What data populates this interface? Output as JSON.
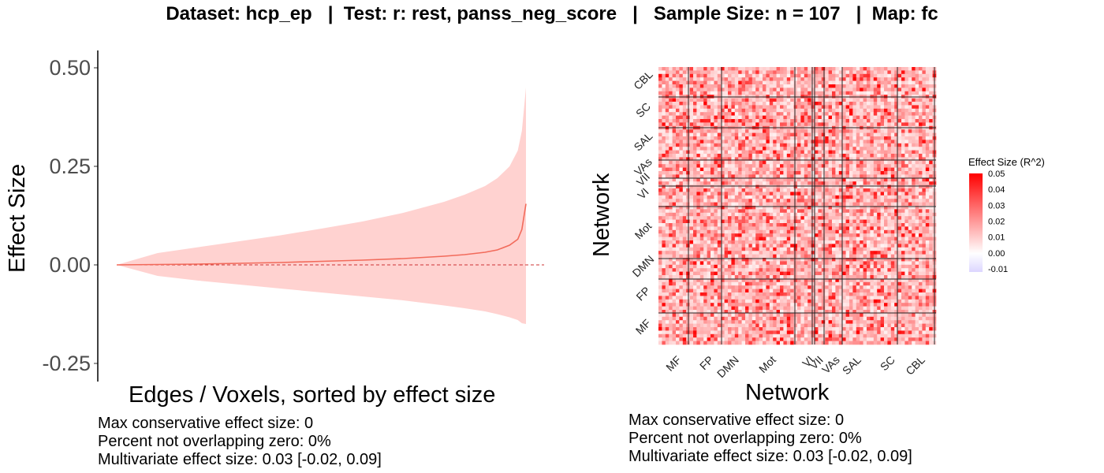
{
  "header": {
    "title": "Dataset: hcp_ep   |  Test: r: rest, panss_neg_score   |   Sample Size: n = 107   |  Map: fc"
  },
  "colors": {
    "ribbon": "#ffd2d0",
    "line": "#f26b5b",
    "zero_line": "#cc3333",
    "heat_high": "#ff0000",
    "heat_mid": "#ffffff",
    "heat_low": "#dcd6ff"
  },
  "chart_data": [
    {
      "type": "area",
      "xlabel": "Edges / Voxels, sorted by effect size",
      "ylabel": "Effect Size",
      "ylim": [
        -0.28,
        0.53
      ],
      "yticks": [
        "-0.25",
        "0.00",
        "0.25",
        "0.50"
      ],
      "ytick_values": [
        -0.25,
        0,
        0.25,
        0.5
      ],
      "zero_line": 0,
      "series": [
        {
          "x": [
            0,
            0.1,
            0.2,
            0.3,
            0.4,
            0.5,
            0.6,
            0.7,
            0.8,
            0.85,
            0.9,
            0.93,
            0.96,
            0.98,
            0.99,
            1.0
          ],
          "values": [
            0,
            0.001,
            0.002,
            0.004,
            0.006,
            0.009,
            0.012,
            0.016,
            0.022,
            0.026,
            0.032,
            0.038,
            0.05,
            0.065,
            0.09,
            0.155
          ],
          "upper": [
            0,
            0.03,
            0.045,
            0.06,
            0.075,
            0.092,
            0.11,
            0.132,
            0.16,
            0.178,
            0.2,
            0.22,
            0.25,
            0.29,
            0.34,
            0.45
          ],
          "lower": [
            0,
            -0.028,
            -0.04,
            -0.05,
            -0.06,
            -0.07,
            -0.08,
            -0.09,
            -0.103,
            -0.11,
            -0.118,
            -0.125,
            -0.133,
            -0.14,
            -0.148,
            -0.15
          ]
        }
      ],
      "stats": [
        "Max conservative effect size: 0",
        "Percent not overlapping zero: 0%",
        "Multivariate effect size: 0.03 [-0.02, 0.09]"
      ]
    },
    {
      "type": "heatmap",
      "xlabel": "Network",
      "ylabel": "Network",
      "networks_x": [
        "MF",
        "FP",
        "DMN",
        "Mot",
        "VI",
        "VII",
        "VAs",
        "SAL",
        "SC",
        "CBL"
      ],
      "networks_y": [
        "CBL",
        "SC",
        "SAL",
        "VAs",
        "VII",
        "VI",
        "Mot",
        "DMN",
        "FP",
        "MF"
      ],
      "legend": {
        "title": "Effect Size (R^2)",
        "ticks": [
          "0.05",
          "0.04",
          "0.03",
          "0.02",
          "0.01",
          "0.00",
          "-0.01"
        ],
        "tick_values": [
          0.05,
          0.04,
          0.03,
          0.02,
          0.01,
          0.0,
          -0.01
        ],
        "range": [
          -0.012,
          0.05
        ]
      },
      "stats": [
        "Max conservative effect size: 0",
        "Percent not overlapping zero: 0%",
        "Multivariate effect size: 0.03 [-0.02, 0.09]"
      ]
    }
  ]
}
